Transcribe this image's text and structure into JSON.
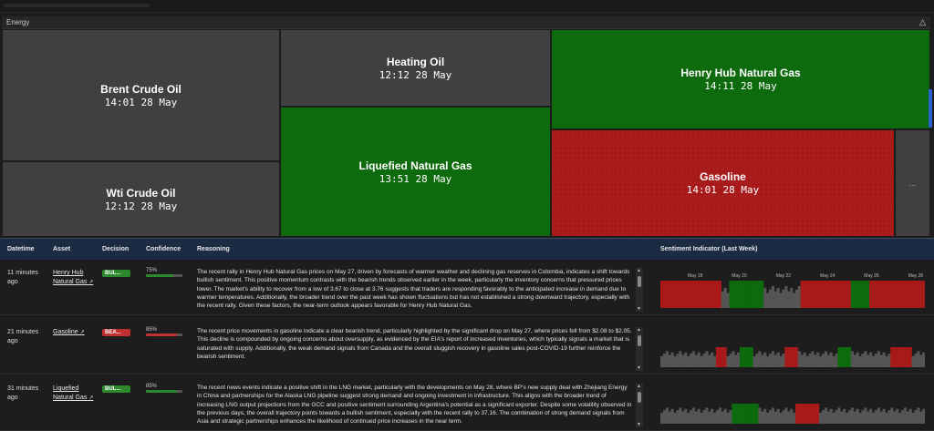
{
  "section": {
    "title": "Energy",
    "toggle_icon": "triangle-up-icon",
    "toggle_glyph": "△"
  },
  "treemap": {
    "tiles": [
      {
        "name": "Brent Crude Oil",
        "time": "14:01 28 May",
        "color": "gray"
      },
      {
        "name": "Wti Crude Oil",
        "time": "12:12 28 May",
        "color": "gray"
      },
      {
        "name": "Heating Oil",
        "time": "12:12 28 May",
        "color": "gray"
      },
      {
        "name": "Liquefied Natural Gas",
        "time": "13:51 28 May",
        "color": "green"
      },
      {
        "name": "Henry Hub Natural Gas",
        "time": "14:11 28 May",
        "color": "green"
      },
      {
        "name": "Gasoline",
        "time": "14:01 28 May",
        "color": "red"
      },
      {
        "name": "...",
        "time": "",
        "color": "gray"
      }
    ]
  },
  "table": {
    "headers": {
      "datetime": "Datetime",
      "asset": "Asset",
      "decision": "Decision",
      "confidence": "Confidence",
      "reasoning": "Reasoning",
      "sentiment": "Sentiment Indicator (Last Week)"
    },
    "rows": [
      {
        "datetime": "11 minutes ago",
        "asset": "Henry Hub Natural Gas",
        "decision": "BUL...",
        "decision_type": "bull",
        "confidence_label": "75%",
        "confidence": 0.75,
        "reasoning": "The recent rally in Henry Hub Natural Gas prices on May 27, driven by forecasts of warmer weather and declining gas reserves in Colombia, indicates a shift towards bullish sentiment. This positive momentum contrasts with the bearish trends observed earlier in the week, particularly the inventory concerns that pressured prices lower. The market's ability to recover from a low of 3.67 to close at 3.76 suggests that traders are responding favorably to the anticipated increase in demand due to warmer temperatures. Additionally, the broader trend over the past week has shown fluctuations but has not established a strong downward trajectory, especially with the recent rally. Given these factors, the near-term outlook appears favorable for Henry Hub Natural Gas.",
        "sentiment_dates": [
          "May 18",
          "May 20",
          "May 22",
          "May 24",
          "May 26",
          "May 28"
        ]
      },
      {
        "datetime": "21 minutes ago",
        "asset": "Gasoline",
        "decision": "BEA...",
        "decision_type": "bear",
        "confidence_label": "85%",
        "confidence": 0.85,
        "reasoning": "The recent price movements in gasoline indicate a clear bearish trend, particularly highlighted by the significant drop on May 27, where prices fell from $2.08 to $2.05. This decline is compounded by ongoing concerns about oversupply, as evidenced by the EIA's report of increased inventories, which typically signals a market that is saturated with supply. Additionally, the weak demand signals from Canada and the overall sluggish recovery in gasoline sales post-COVID-19 further reinforce the bearish sentiment.",
        "sentiment_dates": []
      },
      {
        "datetime": "31 minutes ago",
        "asset": "Liquefied Natural Gas",
        "decision": "BUL...",
        "decision_type": "bull",
        "confidence_label": "85%",
        "confidence": 0.85,
        "reasoning": "The recent news events indicate a positive shift in the LNG market, particularly with the developments on May 28, where BP's new supply deal with Zhejiang Energy in China and partnerships for the Alaska LNG pipeline suggest strong demand and ongoing investment in infrastructure. This aligns with the broader trend of increasing LNG output projections from the GCC and positive sentiment surrounding Argentina's potential as a significant exporter. Despite some volatility observed in the previous days, the overall trajectory points towards a bullish sentiment, especially with the recent rally to 37.16. The combination of strong demand signals from Asia and strategic partnerships enhances the likelihood of continued price increases in the near term.",
        "sentiment_dates": []
      }
    ]
  },
  "colors": {
    "bull": "#2c8a2c",
    "bear": "#c03030",
    "neutral": "#555555",
    "tile_green": "#0d6a0d",
    "tile_red": "#a81a1a",
    "tile_gray": "#404040",
    "header_bg": "#1b2b44"
  },
  "sentiment_series": [
    [
      "r",
      "r",
      "r",
      "r",
      "r",
      "r",
      "r",
      "r",
      "r",
      "r",
      "r",
      "r",
      "r",
      "r",
      "r",
      "r",
      "r",
      "r",
      "r",
      "r",
      "r",
      "r",
      "r",
      "n",
      "n",
      "n",
      "g",
      "g",
      "g",
      "g",
      "g",
      "g",
      "g",
      "g",
      "g",
      "g",
      "g",
      "g",
      "g",
      "n",
      "n",
      "n",
      "n",
      "n",
      "n",
      "n",
      "n",
      "n",
      "n",
      "n",
      "n",
      "n",
      "n",
      "r",
      "r",
      "r",
      "r",
      "r",
      "r",
      "r",
      "r",
      "r",
      "r",
      "r",
      "r",
      "r",
      "r",
      "r",
      "r",
      "r",
      "r",
      "r",
      "g",
      "g",
      "g",
      "g",
      "g",
      "g",
      "g",
      "r",
      "r",
      "r",
      "r",
      "r",
      "r",
      "r",
      "r",
      "r",
      "r",
      "r",
      "r",
      "r",
      "r",
      "r",
      "r",
      "r",
      "r",
      "r",
      "r",
      "r"
    ],
    [
      "n",
      "n",
      "n",
      "n",
      "n",
      "n",
      "n",
      "n",
      "n",
      "n",
      "n",
      "n",
      "n",
      "n",
      "n",
      "n",
      "n",
      "n",
      "n",
      "n",
      "n",
      "r",
      "r",
      "r",
      "r",
      "n",
      "n",
      "n",
      "n",
      "n",
      "g",
      "g",
      "g",
      "g",
      "g",
      "n",
      "n",
      "n",
      "n",
      "n",
      "n",
      "n",
      "n",
      "n",
      "n",
      "n",
      "n",
      "r",
      "r",
      "r",
      "r",
      "r",
      "n",
      "n",
      "n",
      "n",
      "n",
      "n",
      "n",
      "n",
      "n",
      "n",
      "n",
      "n",
      "n",
      "n",
      "n",
      "g",
      "g",
      "g",
      "g",
      "g",
      "n",
      "n",
      "n",
      "n",
      "n",
      "n",
      "n",
      "n",
      "n",
      "n",
      "n",
      "n",
      "n",
      "n",
      "n",
      "r",
      "r",
      "r",
      "r",
      "r",
      "r",
      "r",
      "r",
      "n",
      "n",
      "n",
      "n",
      "n"
    ],
    [
      "n",
      "n",
      "n",
      "n",
      "n",
      "n",
      "n",
      "n",
      "n",
      "n",
      "n",
      "n",
      "n",
      "n",
      "n",
      "n",
      "n",
      "n",
      "n",
      "n",
      "n",
      "n",
      "n",
      "n",
      "n",
      "n",
      "n",
      "g",
      "g",
      "g",
      "g",
      "g",
      "g",
      "g",
      "g",
      "g",
      "g",
      "n",
      "n",
      "n",
      "n",
      "n",
      "n",
      "n",
      "n",
      "n",
      "n",
      "n",
      "n",
      "n",
      "n",
      "r",
      "r",
      "r",
      "r",
      "r",
      "r",
      "r",
      "r",
      "r",
      "n",
      "n",
      "n",
      "n",
      "n",
      "n",
      "n",
      "n",
      "n",
      "n",
      "n",
      "n",
      "n",
      "n",
      "n",
      "n",
      "n",
      "n",
      "n",
      "n",
      "n",
      "n",
      "n",
      "n",
      "n",
      "n",
      "n",
      "n",
      "n",
      "n",
      "n",
      "n",
      "n",
      "n",
      "n",
      "n",
      "n",
      "n",
      "n",
      "n"
    ]
  ]
}
